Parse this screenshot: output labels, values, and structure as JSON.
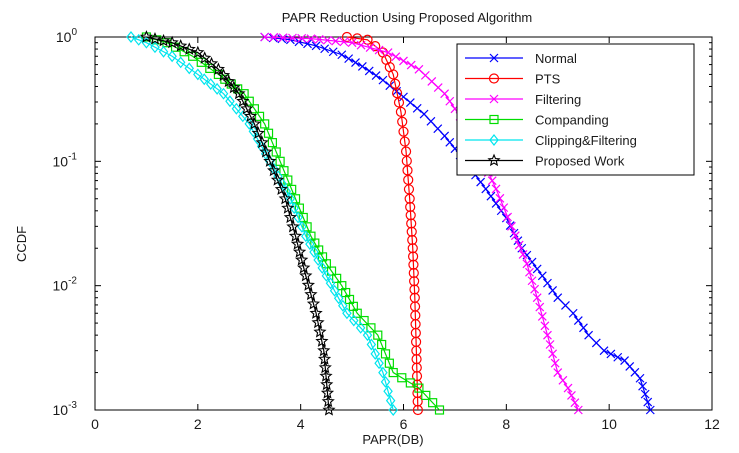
{
  "chart_data": {
    "type": "line",
    "title": "PAPR Reduction Using Proposed Algorithm",
    "xlabel": "PAPR(DB)",
    "ylabel": "CCDF",
    "x_scale": "linear",
    "y_scale": "log",
    "xlim": [
      0,
      12
    ],
    "ylim": [
      0.001,
      1
    ],
    "x_ticks": [
      "0",
      "2",
      "4",
      "6",
      "8",
      "10",
      "12"
    ],
    "y_ticks": [
      {
        "value": 1,
        "base": "10",
        "exp": "0"
      },
      {
        "value": 0.1,
        "base": "10",
        "exp": "-1"
      },
      {
        "value": 0.01,
        "base": "10",
        "exp": "-2"
      },
      {
        "value": 0.001,
        "base": "10",
        "exp": "-3"
      }
    ],
    "grid": false,
    "legend_position": "top-right",
    "series": [
      {
        "name": "Normal",
        "color": "#0000ff",
        "marker": "x",
        "points": [
          [
            3.3,
            1.0
          ],
          [
            3.8,
            0.95
          ],
          [
            4.3,
            0.85
          ],
          [
            4.8,
            0.72
          ],
          [
            5.2,
            0.58
          ],
          [
            5.6,
            0.45
          ],
          [
            6.0,
            0.33
          ],
          [
            6.4,
            0.24
          ],
          [
            6.8,
            0.16
          ],
          [
            7.2,
            0.1
          ],
          [
            7.6,
            0.06
          ],
          [
            8.0,
            0.035
          ],
          [
            8.3,
            0.02
          ],
          [
            8.7,
            0.012
          ],
          [
            9.0,
            0.008
          ],
          [
            9.3,
            0.006
          ],
          [
            9.6,
            0.004
          ],
          [
            9.9,
            0.003
          ],
          [
            10.3,
            0.0025
          ],
          [
            10.6,
            0.0018
          ],
          [
            10.8,
            0.001
          ]
        ]
      },
      {
        "name": "PTS",
        "color": "#ff0000",
        "marker": "o",
        "points": [
          [
            4.9,
            1.0
          ],
          [
            5.3,
            0.95
          ],
          [
            5.6,
            0.75
          ],
          [
            5.8,
            0.5
          ],
          [
            5.95,
            0.25
          ],
          [
            6.05,
            0.12
          ],
          [
            6.12,
            0.05
          ],
          [
            6.18,
            0.02
          ],
          [
            6.22,
            0.008
          ],
          [
            6.25,
            0.003
          ],
          [
            6.28,
            0.001
          ]
        ]
      },
      {
        "name": "Filtering",
        "color": "#ff00ff",
        "marker": "x",
        "points": [
          [
            3.3,
            1.0
          ],
          [
            4.2,
            0.97
          ],
          [
            5.0,
            0.9
          ],
          [
            5.7,
            0.75
          ],
          [
            6.3,
            0.55
          ],
          [
            6.8,
            0.35
          ],
          [
            7.2,
            0.2
          ],
          [
            7.5,
            0.11
          ],
          [
            7.8,
            0.06
          ],
          [
            8.1,
            0.03
          ],
          [
            8.4,
            0.015
          ],
          [
            8.6,
            0.008
          ],
          [
            8.8,
            0.004
          ],
          [
            9.0,
            0.002
          ],
          [
            9.2,
            0.0015
          ],
          [
            9.4,
            0.001
          ]
        ]
      },
      {
        "name": "Companding",
        "color": "#00dd00",
        "marker": "square",
        "points": [
          [
            1.0,
            1.0
          ],
          [
            1.4,
            0.9
          ],
          [
            1.9,
            0.7
          ],
          [
            2.4,
            0.5
          ],
          [
            2.9,
            0.35
          ],
          [
            3.3,
            0.2
          ],
          [
            3.6,
            0.1
          ],
          [
            3.9,
            0.05
          ],
          [
            4.2,
            0.025
          ],
          [
            4.5,
            0.015
          ],
          [
            4.8,
            0.01
          ],
          [
            5.1,
            0.006
          ],
          [
            5.5,
            0.004
          ],
          [
            5.8,
            0.002
          ],
          [
            6.3,
            0.0015
          ],
          [
            6.7,
            0.001
          ]
        ]
      },
      {
        "name": "Clipping&Filtering",
        "color": "#00e5ee",
        "marker": "diamond",
        "points": [
          [
            0.7,
            1.0
          ],
          [
            1.0,
            0.9
          ],
          [
            1.5,
            0.7
          ],
          [
            2.0,
            0.5
          ],
          [
            2.5,
            0.35
          ],
          [
            3.0,
            0.2
          ],
          [
            3.4,
            0.1
          ],
          [
            3.8,
            0.05
          ],
          [
            4.1,
            0.025
          ],
          [
            4.5,
            0.012
          ],
          [
            4.9,
            0.006
          ],
          [
            5.3,
            0.004
          ],
          [
            5.6,
            0.002
          ],
          [
            5.8,
            0.001
          ]
        ]
      },
      {
        "name": "Proposed Work",
        "color": "#000000",
        "marker": "star",
        "points": [
          [
            1.0,
            1.0
          ],
          [
            1.5,
            0.9
          ],
          [
            2.0,
            0.75
          ],
          [
            2.4,
            0.55
          ],
          [
            2.8,
            0.35
          ],
          [
            3.1,
            0.2
          ],
          [
            3.4,
            0.1
          ],
          [
            3.7,
            0.05
          ],
          [
            3.9,
            0.025
          ],
          [
            4.1,
            0.012
          ],
          [
            4.3,
            0.006
          ],
          [
            4.45,
            0.003
          ],
          [
            4.55,
            0.001
          ]
        ]
      }
    ]
  }
}
